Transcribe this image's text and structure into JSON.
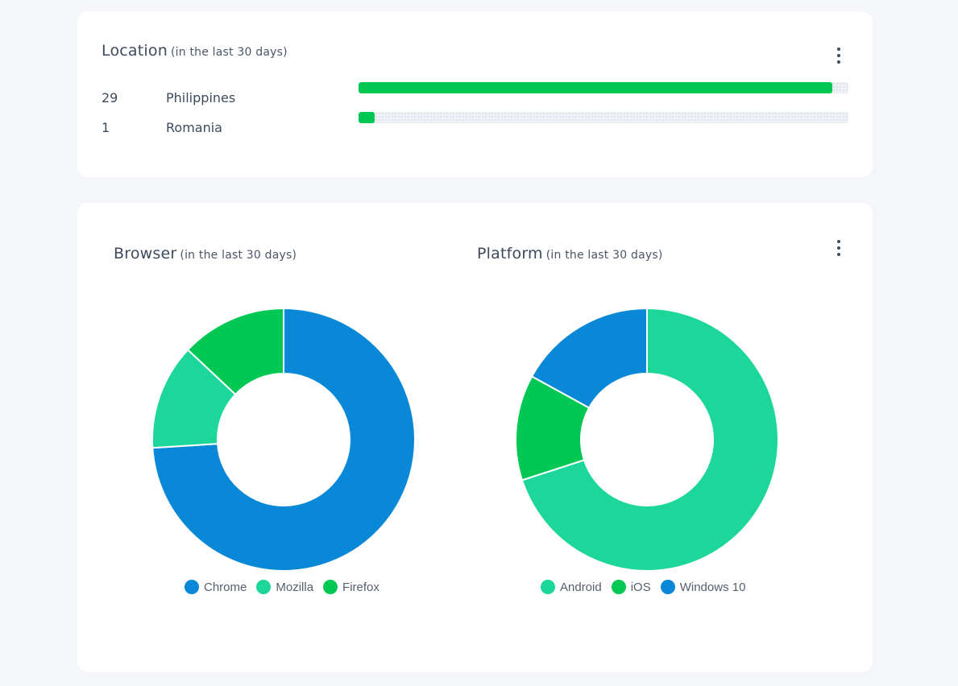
{
  "location_card": {
    "title": "Location",
    "subtitle": "(in the last 30 days)",
    "menu_icon": "kebab-vertical-icon",
    "bar_color": "#00c853",
    "rows": [
      {
        "count": "29",
        "country": "Philippines",
        "fraction": 0.967
      },
      {
        "count": "1",
        "country": "Romania",
        "fraction": 0.033
      }
    ]
  },
  "browser_card": {
    "title": "Browser",
    "subtitle": "(in the last 30 days)"
  },
  "platform_card": {
    "title": "Platform",
    "subtitle": "(in the last 30 days)",
    "menu_icon": "kebab-vertical-icon"
  },
  "chart_data": [
    {
      "type": "pie",
      "variant": "donut",
      "title": "Browser",
      "categories": [
        "Chrome",
        "Mozilla",
        "Firefox"
      ],
      "values": [
        74,
        13,
        13
      ],
      "colors": [
        "#0a88d8",
        "#1dd79a",
        "#00c853"
      ],
      "legend_position": "bottom"
    },
    {
      "type": "pie",
      "variant": "donut",
      "title": "Platform",
      "categories": [
        "Android",
        "iOS",
        "Windows 10"
      ],
      "values": [
        70,
        13,
        17
      ],
      "colors": [
        "#1dd79a",
        "#00c853",
        "#0a88d8"
      ],
      "legend_position": "bottom"
    }
  ]
}
